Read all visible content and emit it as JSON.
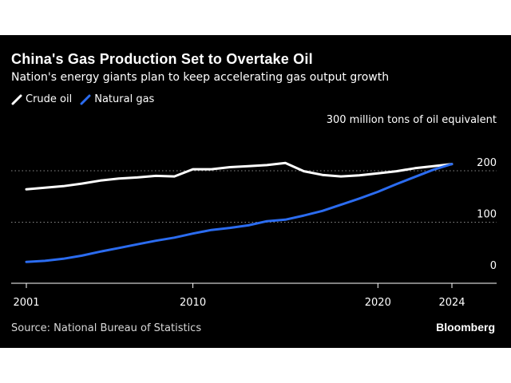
{
  "header": {
    "title": "China's Gas Production Set to Overtake Oil",
    "subtitle": "Nation's energy giants plan to keep accelerating gas output growth"
  },
  "legend": [
    {
      "label": "Crude oil",
      "color": "#ffffff"
    },
    {
      "label": "Natural gas",
      "color": "#2b6cf0"
    }
  ],
  "chart_data": {
    "type": "line",
    "unit_label": "300 million tons of oil equivalent",
    "x_ticks": [
      "2001",
      "2010",
      "2020",
      "2024"
    ],
    "y_ticks": [
      "0",
      "100",
      "200"
    ],
    "xlim": [
      2001,
      2026
    ],
    "ylim": [
      0,
      300
    ],
    "grid": "horizontal dotted",
    "series": [
      {
        "name": "Crude oil",
        "color": "#ffffff",
        "x": [
          2001,
          2002,
          2003,
          2004,
          2005,
          2006,
          2007,
          2008,
          2009,
          2010,
          2011,
          2012,
          2013,
          2014,
          2015,
          2016,
          2017,
          2018,
          2019,
          2020,
          2021,
          2022,
          2023,
          2024
        ],
        "y": [
          164,
          167,
          170,
          175,
          181,
          185,
          187,
          190,
          189,
          203,
          203,
          207,
          209,
          211,
          215,
          199,
          192,
          189,
          191,
          195,
          199,
          205,
          209,
          213
        ]
      },
      {
        "name": "Natural gas",
        "color": "#2b6cf0",
        "x": [
          2001,
          2002,
          2003,
          2004,
          2005,
          2006,
          2007,
          2008,
          2009,
          2010,
          2011,
          2012,
          2013,
          2014,
          2015,
          2016,
          2017,
          2018,
          2019,
          2020,
          2021,
          2022,
          2023,
          2024
        ],
        "y": [
          23,
          25,
          29,
          35,
          43,
          50,
          57,
          64,
          70,
          78,
          85,
          89,
          94,
          102,
          105,
          113,
          122,
          134,
          146,
          159,
          174,
          188,
          202,
          213
        ]
      }
    ]
  },
  "footer": {
    "source": "Source: National Bureau of Statistics",
    "brand": "Bloomberg"
  }
}
